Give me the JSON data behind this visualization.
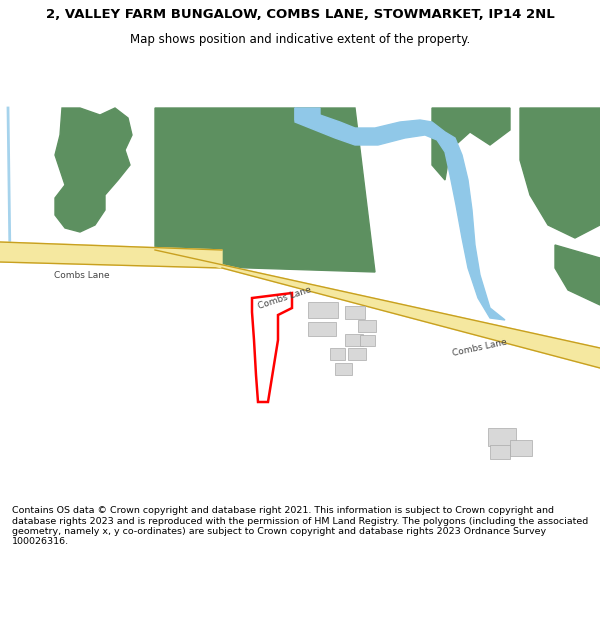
{
  "title": "2, VALLEY FARM BUNGALOW, COMBS LANE, STOWMARKET, IP14 2NL",
  "subtitle": "Map shows position and indicative extent of the property.",
  "footer": "Contains OS data © Crown copyright and database right 2021. This information is subject to Crown copyright and database rights 2023 and is reproduced with the permission of HM Land Registry. The polygons (including the associated geometry, namely x, y co-ordinates) are subject to Crown copyright and database rights 2023 Ordnance Survey 100026316.",
  "bg_color": "#ffffff",
  "road_color": "#f5e8a0",
  "road_edge_color": "#c8a020",
  "green_color": "#5d9060",
  "water_color": "#90c8e8",
  "building_color": "#d8d8d8",
  "building_edge": "#aaaaaa",
  "plot_color": "#ff0000",
  "title_fontsize": 9.5,
  "subtitle_fontsize": 8.5,
  "footer_fontsize": 6.8
}
